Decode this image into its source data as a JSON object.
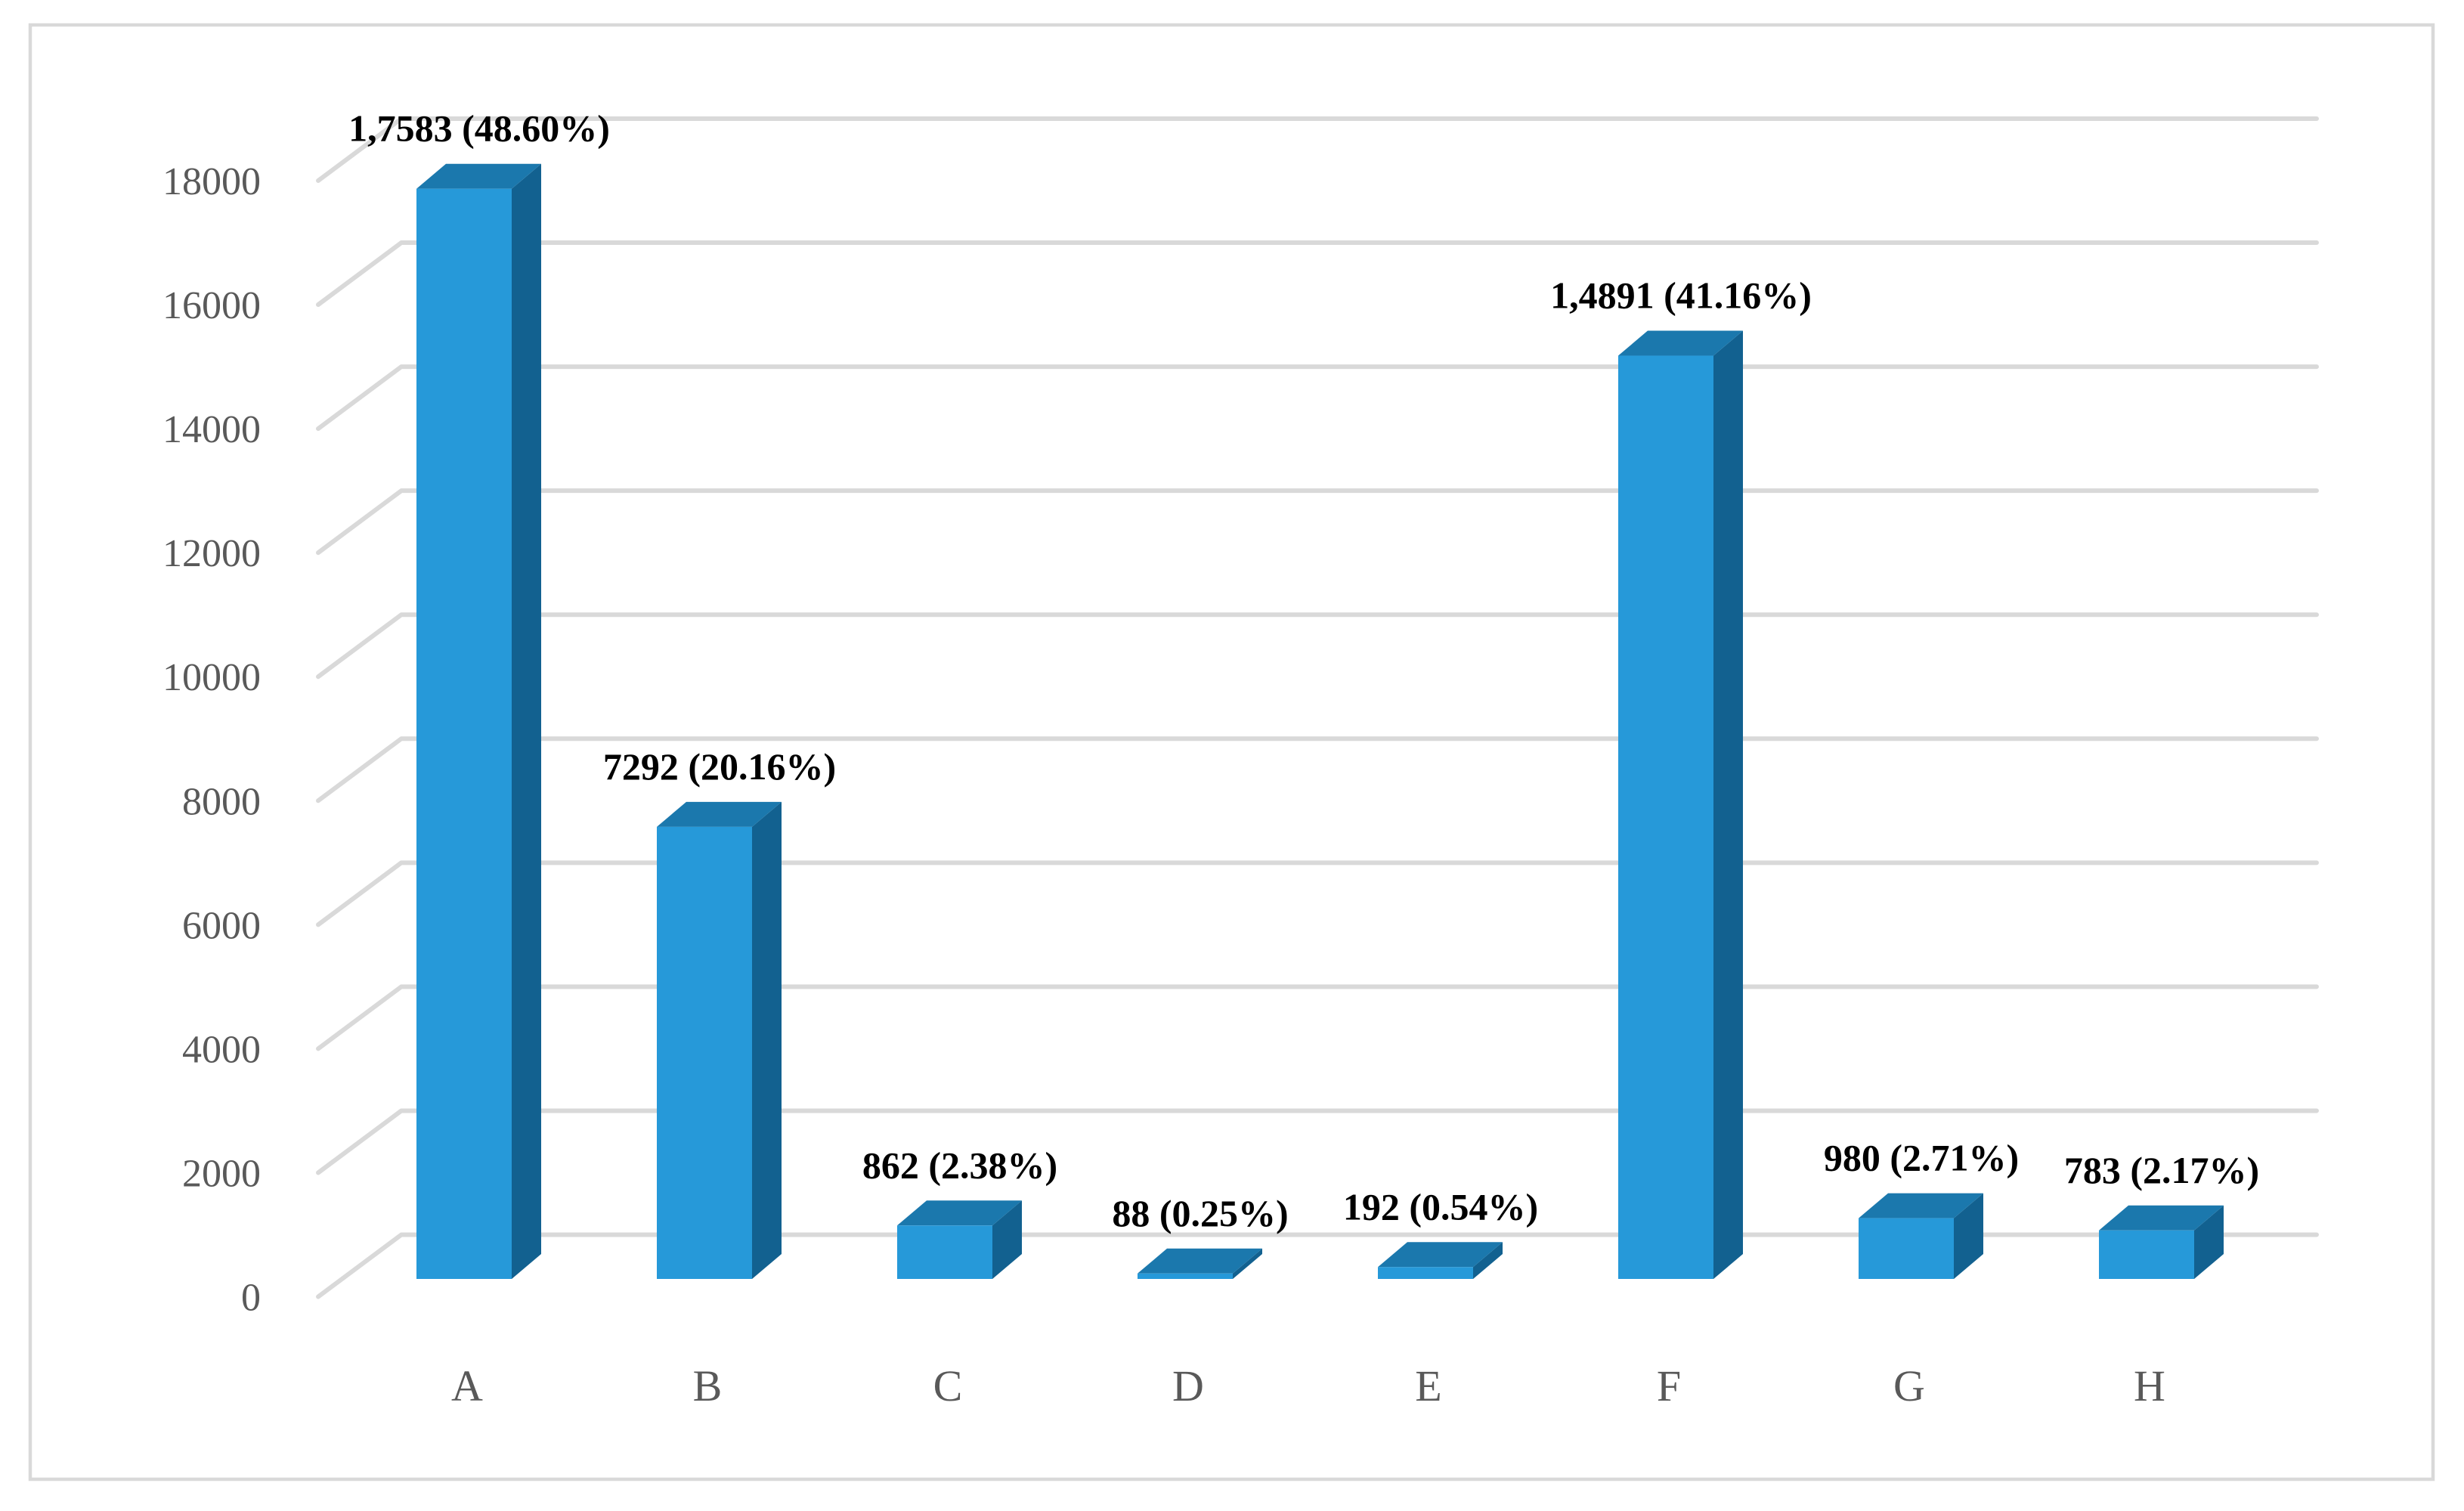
{
  "chart_data": {
    "type": "bar",
    "style": "3d-column",
    "title": "",
    "xlabel": "",
    "ylabel": "",
    "categories": [
      "A",
      "B",
      "C",
      "D",
      "E",
      "F",
      "G",
      "H"
    ],
    "values": [
      17583,
      7292,
      862,
      88,
      192,
      14891,
      980,
      783
    ],
    "data_labels": [
      "1,7583 (48.60%)",
      "7292 (20.16%)",
      "862 (2.38%)",
      "88 (0.25%)",
      "192 (0.54%)",
      "1,4891 (41.16%)",
      "980 (2.71%)",
      "783 (2.17%)"
    ],
    "percentages": [
      48.6,
      20.16,
      2.38,
      0.25,
      0.54,
      41.16,
      2.71,
      2.17
    ],
    "ylim": [
      0,
      18000
    ],
    "ytick_step": 2000,
    "yticks": [
      0,
      2000,
      4000,
      6000,
      8000,
      10000,
      12000,
      14000,
      16000,
      18000
    ],
    "grid": true,
    "legend": false,
    "colors": {
      "bar_front": "#2699D9",
      "bar_top": "#1B78AD",
      "bar_side": "#126190",
      "gridline": "#D9D9D9",
      "frame_border": "#D9D9D9",
      "axis_text": "#595959",
      "data_label_text": "#000000",
      "background": "#FFFFFF"
    }
  }
}
